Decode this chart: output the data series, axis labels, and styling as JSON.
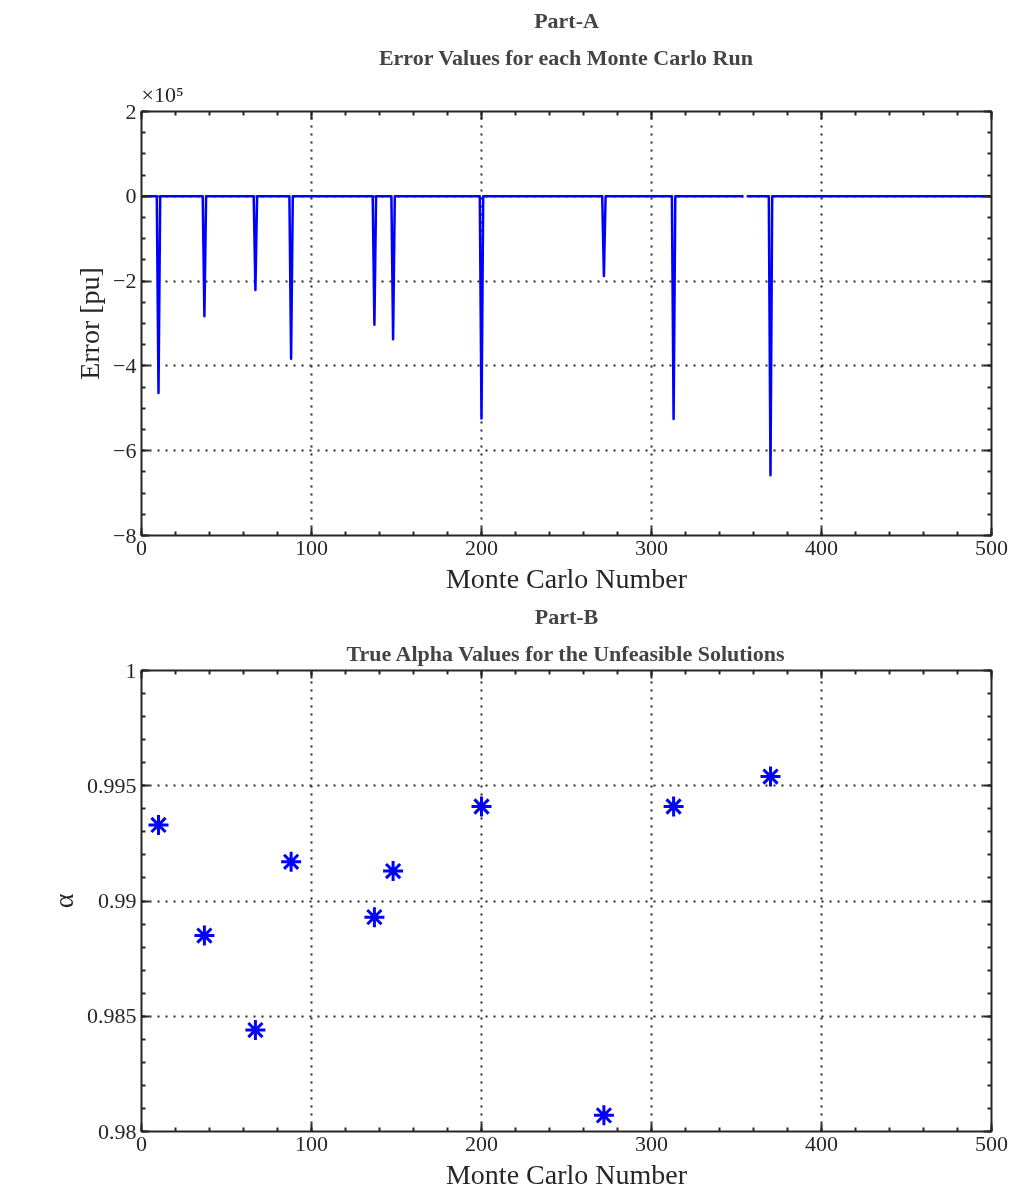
{
  "chart_data": [
    {
      "type": "line",
      "title": "Part-A",
      "subtitle": "Error Values for each Monte Carlo Run",
      "xlabel": "Monte Carlo Number",
      "ylabel": "Error [pu]",
      "annotations": [
        "×10⁵"
      ],
      "series": [
        {
          "color": "#0000ff",
          "x": [
            1,
            9,
            10,
            11,
            36,
            37,
            38,
            66,
            67,
            68,
            87,
            88,
            89,
            136,
            137,
            138,
            147,
            148,
            149,
            199,
            200,
            201,
            271,
            272,
            273,
            312,
            313,
            314,
            354,
            355,
            356,
            369,
            370,
            371,
            500
          ],
          "values": [
            0,
            0,
            -4.64,
            0,
            0,
            -2.83,
            0,
            0,
            -2.21,
            0,
            0,
            -3.83,
            0,
            0,
            -3.03,
            0,
            0,
            -3.37,
            0,
            0,
            -5.24,
            0,
            0,
            -1.88,
            0,
            0,
            -5.25,
            0,
            0,
            null,
            0,
            0,
            -6.58,
            0,
            0
          ]
        }
      ],
      "xlim": [
        0,
        500
      ],
      "xticks": [
        0,
        100,
        200,
        300,
        400,
        500
      ],
      "ylim": [
        -8,
        2
      ],
      "yticks": [
        -8,
        -6,
        -4,
        -2,
        0,
        2
      ],
      "grid": true,
      "line_style": "solid",
      "marker": "none"
    },
    {
      "type": "scatter",
      "title": "Part-B",
      "subtitle": "True Alpha Values for the Unfeasible Solutions",
      "xlabel": "Monte Carlo Number",
      "ylabel": "α",
      "series": [
        {
          "color": "#0000ff",
          "x": [
            10,
            37,
            67,
            88,
            137,
            148,
            200,
            272,
            313,
            370
          ],
          "values": [
            0.9933,
            0.9885,
            0.9844,
            0.9917,
            0.9893,
            0.9913,
            0.9941,
            0.9807,
            0.9941,
            0.9954
          ]
        }
      ],
      "xlim": [
        0,
        500
      ],
      "xticks": [
        0,
        100,
        200,
        300,
        400,
        500
      ],
      "ylim": [
        0.98,
        1
      ],
      "yticks": [
        0.98,
        0.985,
        0.99,
        0.995,
        1
      ],
      "grid": true,
      "marker": "cross"
    }
  ]
}
